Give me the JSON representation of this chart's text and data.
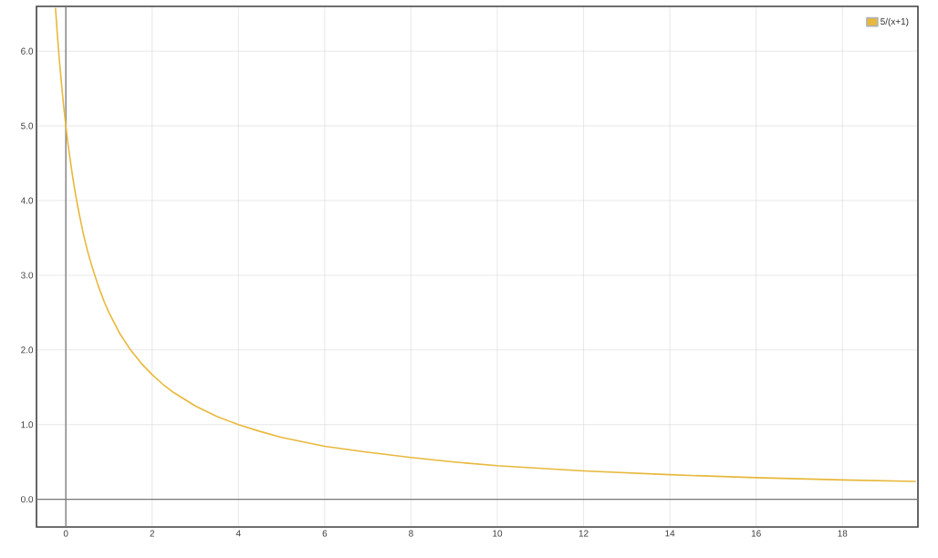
{
  "chart_data": {
    "type": "line",
    "xlim": [
      -0.68,
      19.75
    ],
    "ylim": [
      -0.37,
      6.6
    ],
    "xticks": [
      0,
      2,
      4,
      6,
      8,
      10,
      12,
      14,
      16,
      18
    ],
    "yticks": [
      {
        "value": 0,
        "label": "0.0"
      },
      {
        "value": 1,
        "label": "1.0"
      },
      {
        "value": 2,
        "label": "2.0"
      },
      {
        "value": 3,
        "label": "3.0"
      },
      {
        "value": 4,
        "label": "4.0"
      },
      {
        "value": 5,
        "label": "5.0"
      },
      {
        "value": 6,
        "label": "6.0"
      }
    ],
    "grid": true,
    "legend": "top right",
    "marker": "none",
    "line_style": "solid",
    "series": [
      {
        "name": "5/(x+1)",
        "color": "#e8b83c",
        "x": [
          -0.24,
          -0.2,
          -0.15,
          -0.1,
          -0.05,
          0,
          0.05,
          0.1,
          0.15,
          0.2,
          0.25,
          0.3,
          0.4,
          0.5,
          0.6,
          0.75,
          0.9,
          1,
          1.25,
          1.5,
          1.75,
          2,
          2.25,
          2.5,
          3,
          3.5,
          4,
          4.5,
          5,
          6,
          7,
          8,
          9,
          10,
          12,
          14,
          16,
          18,
          19.7
        ],
        "values": [
          6.58,
          6.25,
          5.88,
          5.56,
          5.26,
          5,
          4.76,
          4.55,
          4.35,
          4.17,
          4,
          3.85,
          3.57,
          3.33,
          3.13,
          2.86,
          2.63,
          2.5,
          2.22,
          2,
          1.82,
          1.67,
          1.54,
          1.43,
          1.25,
          1.11,
          1,
          0.91,
          0.83,
          0.71,
          0.63,
          0.56,
          0.5,
          0.45,
          0.38,
          0.33,
          0.29,
          0.26,
          0.24
        ]
      }
    ]
  }
}
